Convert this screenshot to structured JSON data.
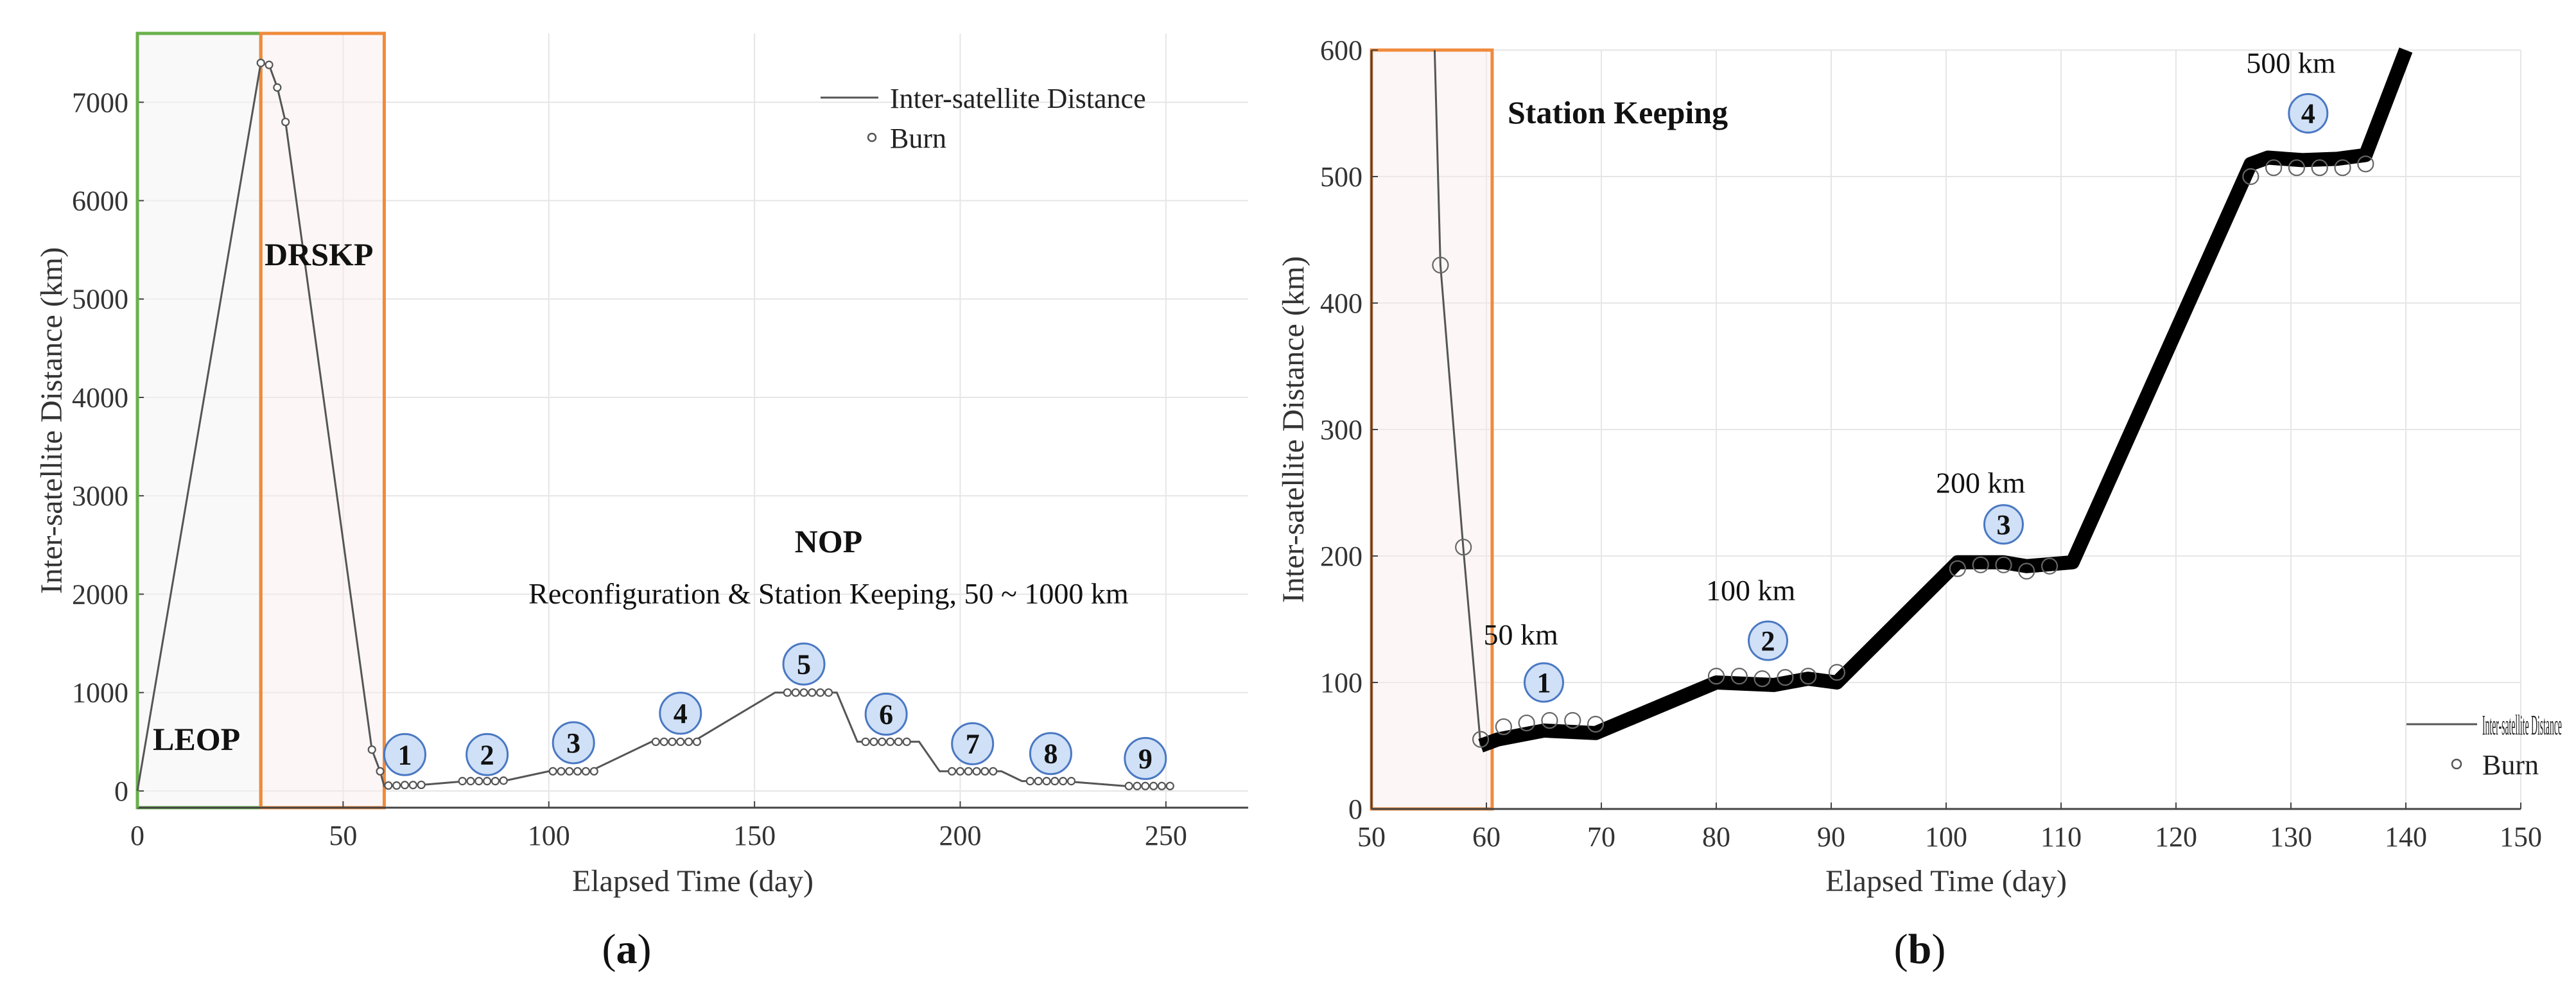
{
  "colors": {
    "green_box": "#6ab04c",
    "orange_box": "#ef8a3b",
    "badge_fill": "#cfe0f7",
    "badge_stroke": "#4a78c2",
    "line": "#555555",
    "thick_line": "#000000",
    "grid": "#e6e6e6"
  },
  "chart_data": [
    {
      "type": "line",
      "panel": "(a)",
      "panel_letter": "a",
      "xlabel": "Elapsed Time (day)",
      "ylabel": "Inter-satellite Distance (km)",
      "xlim": [
        0,
        270
      ],
      "ylim": [
        -170,
        7700
      ],
      "xticks": [
        0,
        50,
        100,
        150,
        200,
        250
      ],
      "yticks": [
        0,
        1000,
        2000,
        3000,
        4000,
        5000,
        6000,
        7000
      ],
      "grid": true,
      "legend": {
        "position": "top-right",
        "line_label": "Inter-satellite Distance",
        "marker_label": "Burn"
      },
      "series": [
        {
          "name": "Inter-satellite Distance",
          "x": [
            0,
            30,
            32,
            34,
            36,
            57,
            59,
            60,
            61,
            70,
            80,
            90,
            100,
            110,
            125,
            135,
            155,
            170,
            175,
            190,
            195,
            210,
            215,
            225,
            240,
            250
          ],
          "y": [
            0,
            7400,
            7380,
            7150,
            6800,
            420,
            200,
            50,
            55,
            65,
            100,
            110,
            200,
            200,
            500,
            500,
            1000,
            1000,
            500,
            500,
            200,
            200,
            100,
            100,
            50,
            50
          ]
        },
        {
          "name": "Burn",
          "x": [
            30,
            32,
            34,
            36,
            57,
            59,
            61,
            63,
            65,
            67,
            69,
            79,
            81,
            83,
            85,
            87,
            89,
            101,
            103,
            105,
            107,
            109,
            111,
            126,
            128,
            130,
            132,
            134,
            136,
            158,
            160,
            162,
            164,
            166,
            168,
            177,
            179,
            181,
            183,
            185,
            187,
            198,
            200,
            202,
            204,
            206,
            208,
            217,
            219,
            221,
            223,
            225,
            227,
            241,
            243,
            245,
            247,
            249,
            251
          ],
          "y": [
            7400,
            7380,
            7150,
            6800,
            420,
            200,
            55,
            55,
            60,
            60,
            62,
            100,
            100,
            100,
            100,
            100,
            105,
            200,
            200,
            200,
            200,
            200,
            200,
            500,
            500,
            500,
            500,
            500,
            500,
            1000,
            1000,
            1000,
            1000,
            1000,
            1000,
            500,
            500,
            500,
            500,
            500,
            500,
            200,
            200,
            200,
            200,
            200,
            200,
            100,
            100,
            100,
            100,
            100,
            100,
            50,
            50,
            50,
            50,
            50,
            50
          ]
        }
      ],
      "regions": [
        {
          "label": "LEOP",
          "x": [
            0,
            30
          ],
          "color": "green"
        },
        {
          "label": "DRSKP",
          "x": [
            30,
            60
          ],
          "color": "orange"
        }
      ],
      "annotations": {
        "nop_title": "NOP",
        "nop_subtitle": "Reconfiguration & Station Keeping, 50 ~ 1000 km"
      },
      "badges": [
        {
          "label": "1",
          "x": 65,
          "y": 370
        },
        {
          "label": "2",
          "x": 85,
          "y": 370
        },
        {
          "label": "3",
          "x": 106,
          "y": 490
        },
        {
          "label": "4",
          "x": 132,
          "y": 790
        },
        {
          "label": "5",
          "x": 162,
          "y": 1290
        },
        {
          "label": "6",
          "x": 182,
          "y": 780
        },
        {
          "label": "7",
          "x": 203,
          "y": 480
        },
        {
          "label": "8",
          "x": 222,
          "y": 380
        },
        {
          "label": "9",
          "x": 245,
          "y": 330
        }
      ]
    },
    {
      "type": "line",
      "panel": "(b)",
      "panel_letter": "b",
      "xlabel": "Elapsed Time (day)",
      "ylabel": "Inter-satellite Distance (km)",
      "xlim": [
        50,
        150
      ],
      "ylim": [
        0,
        600
      ],
      "xticks": [
        50,
        60,
        70,
        80,
        90,
        100,
        110,
        120,
        130,
        140,
        150
      ],
      "yticks": [
        0,
        100,
        200,
        300,
        400,
        500,
        600
      ],
      "grid": true,
      "legend": {
        "position": "bottom-right",
        "line_label": "Inter-satellite Distance",
        "marker_label": "Burn"
      },
      "series": [
        {
          "name": "Inter-satellite Distance (descent)",
          "x": [
            55.5,
            56,
            58,
            59.5
          ],
          "y": [
            600,
            430,
            205,
            50
          ]
        },
        {
          "name": "Inter-satellite Distance",
          "x": [
            59.5,
            61,
            65,
            69.5,
            80,
            85,
            88,
            90.5,
            101,
            105,
            107,
            111,
            126.5,
            128,
            131,
            134,
            136.5,
            140
          ],
          "y": [
            50,
            55,
            62,
            60,
            100,
            98,
            103,
            100,
            195,
            195,
            192,
            195,
            510,
            515,
            513,
            514,
            517,
            600
          ]
        },
        {
          "name": "Burn",
          "x": [
            56,
            58,
            59.5,
            61.5,
            63.5,
            65.5,
            67.5,
            69.5,
            80,
            82,
            84,
            86,
            88,
            90.5,
            101,
            103,
            105,
            107,
            109,
            126.5,
            128.5,
            130.5,
            132.5,
            134.5,
            136.5
          ],
          "y": [
            430,
            207,
            55,
            65,
            68,
            70,
            70,
            67,
            105,
            105,
            103,
            104,
            105,
            108,
            190,
            193,
            193,
            188,
            192,
            500,
            507,
            507,
            507,
            507,
            510
          ]
        }
      ],
      "regions": [
        {
          "label": "Station Keeping",
          "x": [
            50,
            60.5
          ],
          "color": "orange"
        }
      ],
      "annotations": [
        {
          "text": "50 km",
          "x": 63,
          "y": 130
        },
        {
          "text": "100 km",
          "x": 83,
          "y": 165
        },
        {
          "text": "200 km",
          "x": 103,
          "y": 250
        },
        {
          "text": "500 km",
          "x": 130,
          "y": 582
        }
      ],
      "badges": [
        {
          "label": "1",
          "x": 65,
          "y": 100
        },
        {
          "label": "2",
          "x": 84.5,
          "y": 133
        },
        {
          "label": "3",
          "x": 105,
          "y": 225
        },
        {
          "label": "4",
          "x": 131.5,
          "y": 550
        }
      ]
    }
  ]
}
